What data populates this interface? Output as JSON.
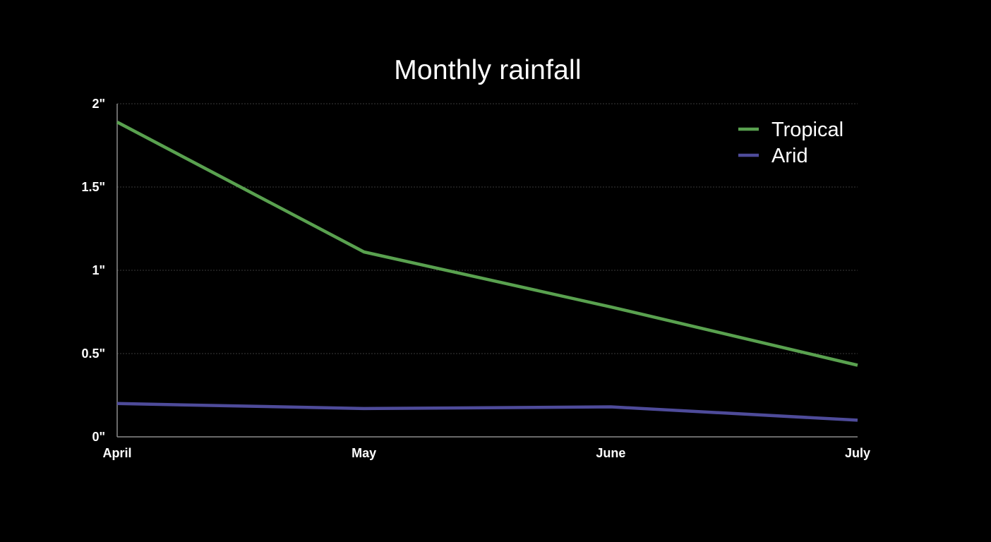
{
  "chart_data": {
    "type": "line",
    "title": "Monthly rainfall",
    "xlabel": "",
    "ylabel": "",
    "categories": [
      "April",
      "May",
      "June",
      "July"
    ],
    "series": [
      {
        "name": "Tropical",
        "color": "#59a14f",
        "values": [
          1.89,
          1.11,
          0.78,
          0.43
        ]
      },
      {
        "name": "Arid",
        "color": "#4e4b9a",
        "values": [
          0.2,
          0.17,
          0.18,
          0.1
        ]
      }
    ],
    "ylim": [
      0,
      2
    ],
    "yticks": [
      0,
      0.5,
      1,
      1.5,
      2
    ],
    "ytick_labels": [
      "0\"",
      "0.5\"",
      "1\"",
      "1.5\"",
      "2\""
    ],
    "grid": true,
    "legend_position": "top-right"
  }
}
